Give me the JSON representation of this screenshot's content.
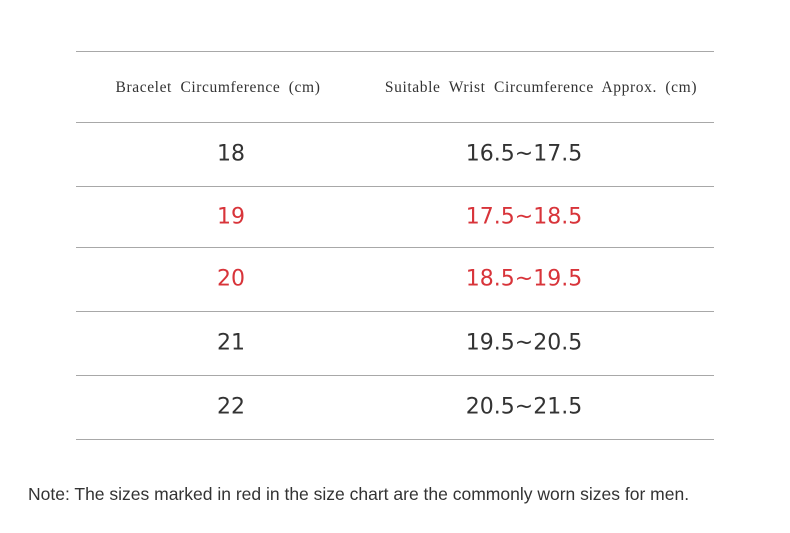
{
  "table": {
    "header": [
      "Bracelet Circumference (cm)",
      "Suitable Wrist Circumference Approx. (cm)"
    ],
    "rows": [
      {
        "cells": [
          "18",
          "16.5~17.5"
        ],
        "color": "#333333"
      },
      {
        "cells": [
          "19",
          "17.5~18.5"
        ],
        "color": "#d8343a"
      },
      {
        "cells": [
          "20",
          "18.5~19.5"
        ],
        "color": "#d8343a"
      },
      {
        "cells": [
          "21",
          "19.5~20.5"
        ],
        "color": "#333333"
      },
      {
        "cells": [
          "22",
          "20.5~21.5"
        ],
        "color": "#333333"
      }
    ]
  },
  "note": "Note: The sizes marked in red in the size chart are the commonly worn sizes for men."
}
